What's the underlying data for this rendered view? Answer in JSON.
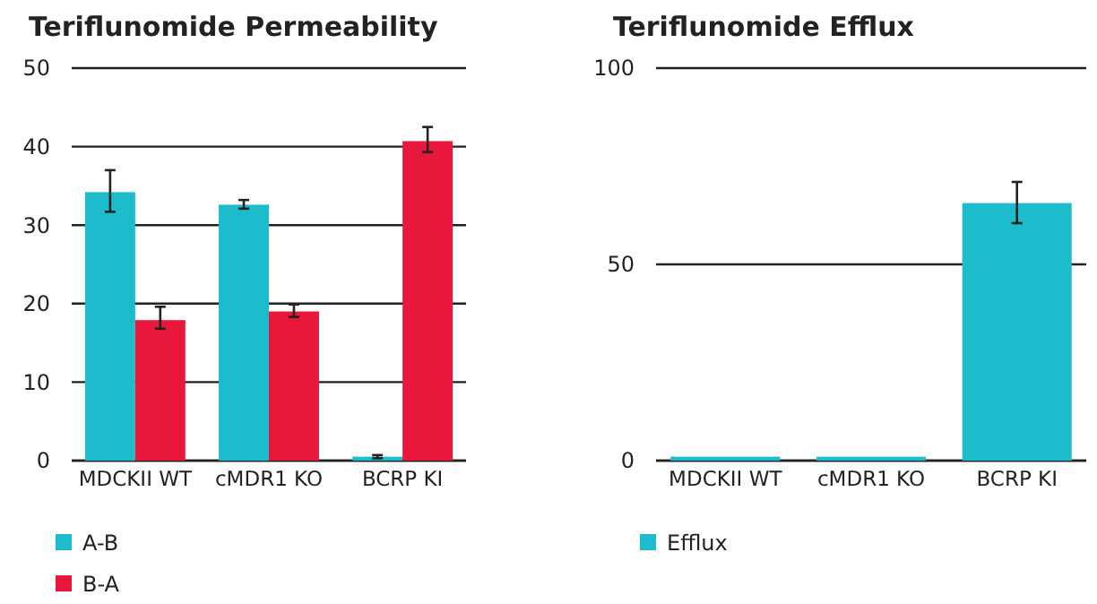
{
  "chart_data": [
    {
      "type": "bar",
      "title": "Teriflunomide Permeability",
      "categories": [
        "MDCKII WT",
        "cMDR1 KO",
        "BCRP KI"
      ],
      "series": [
        {
          "name": "A-B",
          "color": "#1dbccd",
          "values": [
            34.2,
            32.6,
            0.5
          ],
          "errors": [
            [
              31.7,
              37
            ],
            [
              32.1,
              33.2
            ],
            [
              0.3,
              0.7
            ]
          ]
        },
        {
          "name": "B-A",
          "color": "#e8173b",
          "values": [
            17.9,
            19.0,
            40.7
          ],
          "errors": [
            [
              16.8,
              19.6
            ],
            [
              18.3,
              19.9
            ],
            [
              39.3,
              42.5
            ]
          ]
        }
      ],
      "ylim": [
        0,
        50
      ],
      "yticks": [
        0,
        10,
        20,
        30,
        40,
        50
      ],
      "grid": "y",
      "legend": "bottom left"
    },
    {
      "type": "bar",
      "title": "Teriflunomide Efflux",
      "categories": [
        "MDCKII WT",
        "cMDR1 KO",
        "BCRP KI"
      ],
      "series": [
        {
          "name": "Efflux",
          "color": "#1dbccd",
          "values": [
            1,
            1,
            65.6
          ],
          "errors": [
            null,
            null,
            [
              60.5,
              71
            ]
          ]
        }
      ],
      "ylim": [
        0,
        100
      ],
      "yticks": [
        0,
        50,
        100
      ],
      "grid": "y",
      "legend": "bottom left"
    }
  ]
}
